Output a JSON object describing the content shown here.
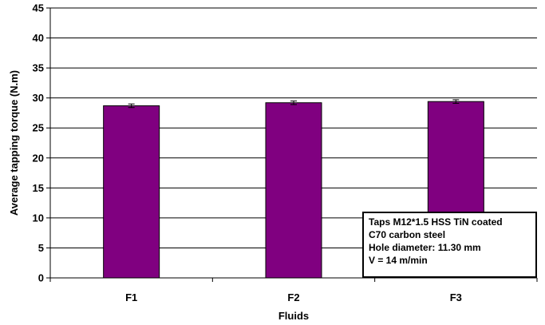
{
  "chart_data": {
    "type": "bar",
    "categories": [
      "F1",
      "F2",
      "F3"
    ],
    "values": [
      28.7,
      29.2,
      29.4
    ],
    "error": [
      0.3,
      0.3,
      0.3
    ],
    "xlabel": "Fluids",
    "ylabel": "Average tapping torque (N.m)",
    "ylim": [
      0,
      45
    ],
    "yticks": [
      0,
      5,
      10,
      15,
      20,
      25,
      30,
      35,
      40,
      45
    ],
    "grid": true,
    "bar_color": "#800080",
    "annotation": {
      "lines": [
        "Taps M12*1.5 HSS TiN coated",
        "C70 carbon steel",
        "Hole diameter: 11.30 mm",
        "V = 14 m/min"
      ]
    }
  }
}
